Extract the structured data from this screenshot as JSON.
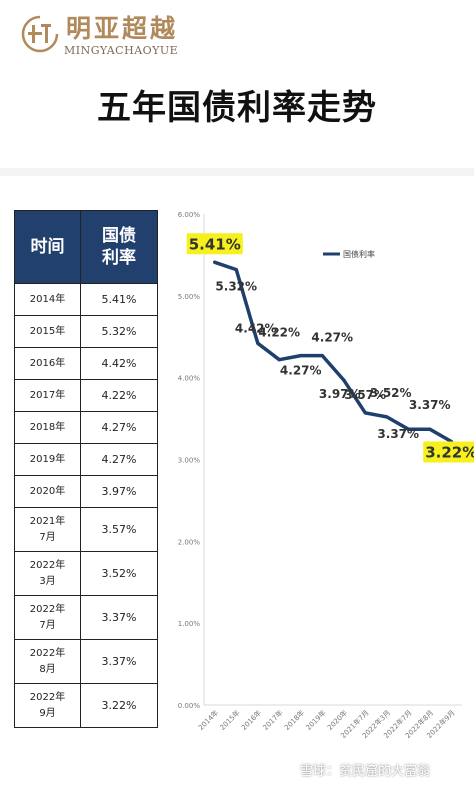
{
  "brand": {
    "name_cn": "明亚超越",
    "name_en": "MINGYACHAOYUE"
  },
  "page_title": "五年国债利率走势",
  "table": {
    "headers": [
      "时间",
      "国债\n利率"
    ],
    "rows": [
      {
        "time": "2014年",
        "rate": "5.41%"
      },
      {
        "time": "2015年",
        "rate": "5.32%"
      },
      {
        "time": "2016年",
        "rate": "4.42%"
      },
      {
        "time": "2017年",
        "rate": "4.22%"
      },
      {
        "time": "2018年",
        "rate": "4.27%"
      },
      {
        "time": "2019年",
        "rate": "4.27%"
      },
      {
        "time": "2020年",
        "rate": "3.97%"
      },
      {
        "time": "2021年\n7月",
        "rate": "3.57%"
      },
      {
        "time": "2022年\n3月",
        "rate": "3.52%"
      },
      {
        "time": "2022年\n7月",
        "rate": "3.37%"
      },
      {
        "time": "2022年\n8月",
        "rate": "3.37%"
      },
      {
        "time": "2022年\n9月",
        "rate": "3.22%"
      }
    ]
  },
  "chart_data": {
    "type": "line",
    "categories": [
      "2014年",
      "2015年",
      "2016年",
      "2017年",
      "2018年",
      "2019年",
      "2020年",
      "2021年7月",
      "2022年3月",
      "2022年7月",
      "2022年8月",
      "2022年9月"
    ],
    "series": [
      {
        "name": "国债利率",
        "values": [
          5.41,
          5.32,
          4.42,
          4.22,
          4.27,
          4.27,
          3.97,
          3.57,
          3.52,
          3.37,
          3.37,
          3.22
        ],
        "color": "#1f3f6e"
      }
    ],
    "ylim": [
      0,
      6
    ],
    "yticks": [
      "0.00%",
      "1.00%",
      "2.00%",
      "3.00%",
      "4.00%",
      "5.00%",
      "6.00%"
    ],
    "grid": false,
    "legend_position": "top-right",
    "data_labels": [
      "5.41%",
      "5.32%",
      "4.42%",
      "4.22%",
      "4.27%",
      "4.27%",
      "3.97%",
      "3.57%",
      "3.52%",
      "3.37%",
      "3.37%",
      "3.22%"
    ],
    "highlighted_labels": [
      "5.41%",
      "3.22%"
    ],
    "highlight_color": "#f6f01c"
  },
  "watermark": "雪球：贫民窟的大富翁"
}
